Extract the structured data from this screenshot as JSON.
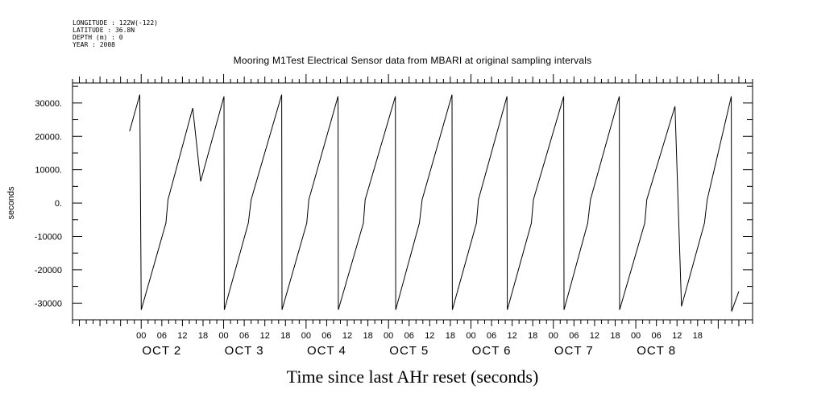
{
  "header": {
    "longitude": "LONGITUDE : 122W(-122)",
    "latitude": "LATITUDE : 36.8N",
    "depth": "DEPTH (m) : 0",
    "year": "YEAR : 2008"
  },
  "chart_data": {
    "type": "line",
    "title": "Mooring M1Test Electrical Sensor data from MBARI at original sampling intervals",
    "xlabel": "Time since last AHr reset (seconds)",
    "ylabel": "seconds",
    "ylim": [
      -35000,
      36000
    ],
    "xlim_hours": [
      -20,
      178
    ],
    "yticks": [
      "30000.",
      "20000.",
      "10000.",
      "0.",
      "-10000",
      "-20000",
      "-30000"
    ],
    "ytick_values": [
      30000,
      20000,
      10000,
      0,
      -10000,
      -20000,
      -30000
    ],
    "xticks_hours": [
      0,
      6,
      12,
      18,
      24,
      30,
      36,
      42,
      48,
      54,
      60,
      66,
      72,
      78,
      84,
      90,
      96,
      102,
      108,
      114,
      120,
      126,
      132,
      138,
      144,
      150,
      156,
      162
    ],
    "xtick_labels": [
      "00",
      "06",
      "12",
      "18",
      "00",
      "06",
      "12",
      "18",
      "00",
      "06",
      "12",
      "18",
      "00",
      "06",
      "12",
      "18",
      "00",
      "06",
      "12",
      "18",
      "00",
      "06",
      "12",
      "18",
      "00",
      "06",
      "12",
      "18"
    ],
    "date_labels": [
      "OCT  2",
      "OCT  3",
      "OCT  4",
      "OCT  5",
      "OCT  6",
      "OCT  7",
      "OCT  8"
    ],
    "date_label_hours": [
      6,
      30,
      54,
      78,
      102,
      126,
      150
    ],
    "grid": false,
    "series": [
      {
        "values": [
          [
            -3.4,
            21500
          ],
          [
            -0.4,
            32500
          ],
          [
            -0.3,
            15000
          ],
          [
            0.0,
            -32000
          ],
          [
            7.2,
            -6000
          ],
          [
            7.8,
            1000
          ],
          [
            15.0,
            28500
          ],
          [
            17.3,
            6500
          ],
          [
            24.1,
            32000
          ],
          [
            24.2,
            -32000
          ],
          [
            31.2,
            -6000
          ],
          [
            32.0,
            1000
          ],
          [
            40.9,
            32500
          ],
          [
            41.0,
            -32000
          ],
          [
            48.2,
            -6000
          ],
          [
            48.8,
            1000
          ],
          [
            57.3,
            32000
          ],
          [
            57.4,
            -32000
          ],
          [
            64.7,
            -6000
          ],
          [
            65.2,
            1000
          ],
          [
            74.0,
            32000
          ],
          [
            74.1,
            -32000
          ],
          [
            81.0,
            -6000
          ],
          [
            81.8,
            1000
          ],
          [
            90.5,
            32500
          ],
          [
            90.6,
            -32000
          ],
          [
            97.6,
            -6000
          ],
          [
            98.2,
            1000
          ],
          [
            106.5,
            32000
          ],
          [
            106.6,
            -32000
          ],
          [
            113.6,
            -6000
          ],
          [
            114.2,
            1000
          ],
          [
            123.0,
            32000
          ],
          [
            123.1,
            -32000
          ],
          [
            130.0,
            -6000
          ],
          [
            130.8,
            1000
          ],
          [
            139.2,
            32000
          ],
          [
            139.3,
            -32000
          ],
          [
            146.6,
            -6000
          ],
          [
            147.2,
            1000
          ],
          [
            155.4,
            29000
          ],
          [
            157.3,
            -31000
          ],
          [
            164.0,
            -6000
          ],
          [
            164.8,
            1000
          ],
          [
            171.8,
            32000
          ],
          [
            171.9,
            -32500
          ],
          [
            174.0,
            -26500
          ]
        ]
      }
    ]
  }
}
